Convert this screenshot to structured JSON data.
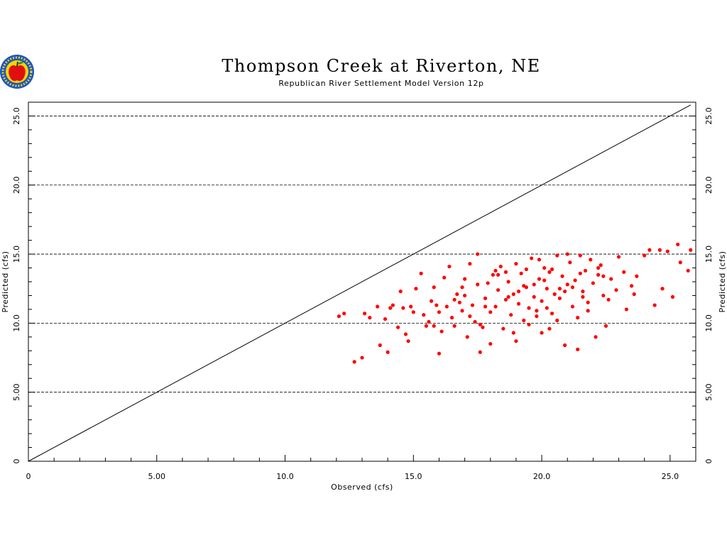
{
  "chart_data": {
    "type": "scatter",
    "title": "Thompson Creek at Riverton, NE",
    "subtitle": "Republican River Settlement Model Version 12p",
    "xlabel": "Observed (cfs)",
    "ylabel": "Predicted (cfs)",
    "ylabel_right": "Predicted (cfs)",
    "xlim": [
      0,
      26
    ],
    "ylim": [
      0,
      26
    ],
    "x_ticks": [
      0,
      5,
      10,
      15,
      20,
      25
    ],
    "x_tick_labels": [
      "0",
      "5.00",
      "10.0",
      "15.0",
      "20.0",
      "25.0"
    ],
    "y_ticks": [
      0,
      5,
      10,
      15,
      20,
      25
    ],
    "y_tick_labels": [
      "0",
      "5.00",
      "10.0",
      "15.0",
      "20.0",
      "25.0"
    ],
    "grid": "horizontal dashed",
    "reference_line": {
      "type": "1:1",
      "from": [
        0,
        0
      ],
      "to": [
        25.8,
        25.8
      ]
    },
    "point_color": "#ff0000",
    "line_color": "#000000",
    "logo": "apple-logo-icon",
    "points": [
      [
        12.1,
        10.5
      ],
      [
        12.3,
        10.7
      ],
      [
        12.7,
        7.2
      ],
      [
        13.0,
        7.5
      ],
      [
        13.1,
        10.7
      ],
      [
        13.3,
        10.4
      ],
      [
        13.6,
        11.2
      ],
      [
        13.7,
        8.4
      ],
      [
        13.9,
        10.3
      ],
      [
        14.0,
        7.9
      ],
      [
        14.1,
        11.1
      ],
      [
        14.2,
        11.3
      ],
      [
        14.4,
        9.7
      ],
      [
        14.5,
        12.3
      ],
      [
        14.6,
        11.1
      ],
      [
        14.7,
        9.2
      ],
      [
        14.8,
        8.7
      ],
      [
        14.9,
        11.2
      ],
      [
        15.0,
        10.8
      ],
      [
        15.1,
        12.5
      ],
      [
        15.3,
        13.6
      ],
      [
        15.4,
        10.6
      ],
      [
        15.5,
        9.8
      ],
      [
        15.6,
        10.1
      ],
      [
        15.7,
        11.6
      ],
      [
        15.8,
        12.6
      ],
      [
        15.9,
        11.3
      ],
      [
        16.0,
        10.8
      ],
      [
        16.0,
        7.8
      ],
      [
        16.1,
        9.4
      ],
      [
        16.2,
        13.3
      ],
      [
        16.3,
        11.2
      ],
      [
        16.4,
        14.1
      ],
      [
        16.5,
        10.4
      ],
      [
        16.6,
        9.8
      ],
      [
        16.7,
        12.1
      ],
      [
        16.8,
        11.5
      ],
      [
        16.9,
        10.9
      ],
      [
        17.0,
        13.2
      ],
      [
        17.0,
        12.0
      ],
      [
        17.1,
        9.0
      ],
      [
        17.2,
        14.3
      ],
      [
        17.3,
        11.3
      ],
      [
        17.4,
        10.1
      ],
      [
        17.5,
        12.8
      ],
      [
        17.5,
        15.0
      ],
      [
        17.6,
        7.9
      ],
      [
        17.7,
        9.7
      ],
      [
        17.8,
        11.8
      ],
      [
        17.9,
        12.9
      ],
      [
        18.0,
        10.8
      ],
      [
        18.0,
        8.5
      ],
      [
        18.1,
        13.5
      ],
      [
        18.2,
        11.2
      ],
      [
        18.3,
        12.4
      ],
      [
        18.4,
        14.1
      ],
      [
        18.5,
        9.6
      ],
      [
        18.6,
        11.7
      ],
      [
        18.7,
        13.0
      ],
      [
        18.8,
        10.6
      ],
      [
        18.9,
        12.1
      ],
      [
        19.0,
        14.3
      ],
      [
        19.0,
        8.7
      ],
      [
        19.1,
        11.4
      ],
      [
        19.2,
        13.6
      ],
      [
        19.3,
        10.2
      ],
      [
        19.4,
        12.6
      ],
      [
        19.5,
        11.1
      ],
      [
        19.6,
        14.7
      ],
      [
        19.7,
        12.8
      ],
      [
        19.8,
        10.9
      ],
      [
        19.9,
        13.2
      ],
      [
        20.0,
        11.6
      ],
      [
        20.0,
        9.3
      ],
      [
        20.1,
        14.0
      ],
      [
        20.2,
        12.5
      ],
      [
        20.3,
        13.7
      ],
      [
        20.4,
        10.7
      ],
      [
        20.5,
        12.1
      ],
      [
        20.6,
        14.9
      ],
      [
        20.7,
        11.8
      ],
      [
        20.8,
        13.4
      ],
      [
        20.9,
        8.4
      ],
      [
        21.0,
        12.8
      ],
      [
        21.1,
        14.4
      ],
      [
        21.2,
        11.2
      ],
      [
        21.3,
        13.1
      ],
      [
        21.4,
        8.1
      ],
      [
        21.5,
        14.9
      ],
      [
        21.6,
        12.3
      ],
      [
        21.7,
        13.8
      ],
      [
        21.8,
        11.5
      ],
      [
        21.9,
        14.6
      ],
      [
        22.0,
        12.9
      ],
      [
        22.1,
        9.0
      ],
      [
        22.2,
        13.5
      ],
      [
        22.3,
        14.2
      ],
      [
        22.4,
        12.0
      ],
      [
        22.5,
        9.8
      ],
      [
        22.7,
        13.2
      ],
      [
        22.9,
        12.4
      ],
      [
        23.0,
        14.8
      ],
      [
        23.2,
        13.7
      ],
      [
        23.3,
        11.0
      ],
      [
        23.5,
        12.7
      ],
      [
        23.7,
        13.4
      ],
      [
        24.0,
        14.9
      ],
      [
        24.2,
        15.3
      ],
      [
        24.4,
        11.3
      ],
      [
        24.6,
        15.3
      ],
      [
        24.7,
        12.5
      ],
      [
        24.9,
        15.2
      ],
      [
        25.1,
        11.9
      ],
      [
        25.3,
        15.7
      ],
      [
        25.4,
        14.4
      ],
      [
        25.7,
        13.8
      ],
      [
        25.8,
        15.3
      ],
      [
        17.8,
        11.2
      ],
      [
        18.7,
        11.9
      ],
      [
        19.3,
        12.7
      ],
      [
        20.1,
        13.1
      ],
      [
        20.9,
        12.3
      ],
      [
        21.6,
        11.9
      ],
      [
        22.2,
        14.0
      ],
      [
        19.7,
        11.9
      ],
      [
        20.4,
        13.9
      ],
      [
        21.2,
        12.6
      ],
      [
        19.1,
        12.3
      ],
      [
        18.2,
        13.8
      ],
      [
        17.2,
        10.5
      ],
      [
        16.6,
        11.7
      ],
      [
        15.8,
        9.8
      ],
      [
        20.6,
        10.2
      ],
      [
        21.8,
        10.9
      ],
      [
        22.6,
        11.7
      ],
      [
        19.5,
        9.9
      ],
      [
        20.3,
        9.6
      ],
      [
        18.9,
        9.3
      ],
      [
        17.6,
        9.9
      ],
      [
        16.9,
        12.6
      ],
      [
        18.3,
        13.5
      ],
      [
        19.9,
        14.6
      ],
      [
        21.0,
        15.0
      ],
      [
        21.5,
        13.6
      ],
      [
        20.7,
        12.5
      ],
      [
        19.4,
        13.9
      ],
      [
        18.6,
        13.7
      ],
      [
        22.4,
        13.4
      ],
      [
        23.6,
        12.1
      ],
      [
        20.2,
        11.1
      ],
      [
        21.4,
        10.4
      ],
      [
        19.8,
        10.5
      ]
    ]
  }
}
